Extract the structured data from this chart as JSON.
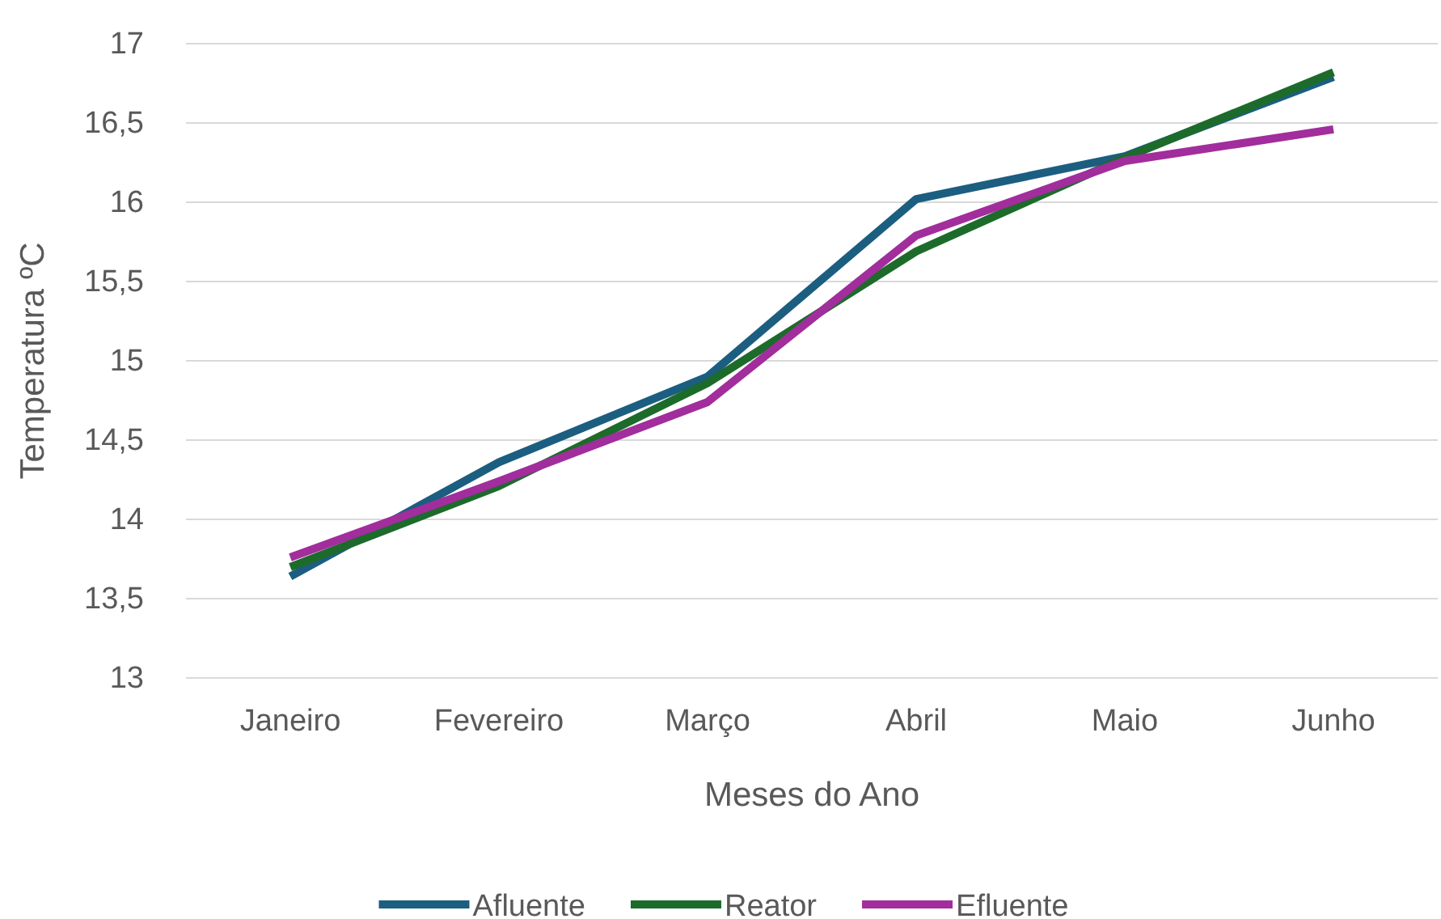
{
  "chart_data": {
    "type": "line",
    "xlabel": "Meses do Ano",
    "ylabel": "Temperatura ºC",
    "categories": [
      "Janeiro",
      "Fevereiro",
      "Março",
      "Abril",
      "Maio",
      "Junho"
    ],
    "series": [
      {
        "name": "Afluente",
        "color": "#1b5e80",
        "values": [
          13.64,
          14.36,
          14.9,
          16.02,
          16.29,
          16.79
        ]
      },
      {
        "name": "Reator",
        "color": "#1d6b2b",
        "values": [
          13.7,
          14.21,
          14.86,
          15.69,
          16.28,
          16.82
        ]
      },
      {
        "name": "Efluente",
        "color": "#a22d9c",
        "values": [
          13.76,
          14.24,
          14.74,
          15.79,
          16.26,
          16.46
        ]
      }
    ],
    "ylim": [
      13,
      17
    ],
    "yticks": [
      13,
      {
        "value": 13.5,
        "label": "13,5"
      },
      14,
      {
        "value": 14.5,
        "label": "14,5"
      },
      15,
      {
        "value": 15.5,
        "label": "15,5"
      },
      16,
      {
        "value": 16.5,
        "label": "16,5"
      },
      17
    ],
    "grid": "y",
    "legend": "bottom",
    "marker": "none",
    "line_style": "solid"
  }
}
